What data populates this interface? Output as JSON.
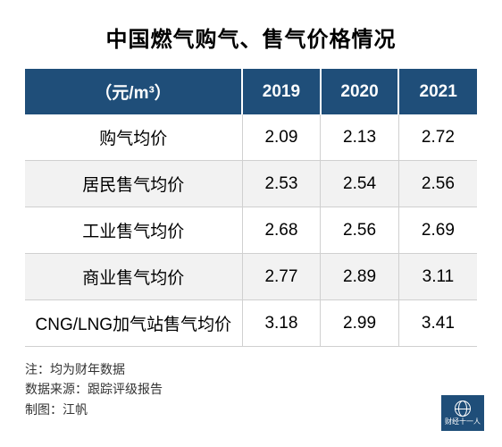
{
  "title": "中国燃气购气、售气价格情况",
  "table": {
    "header_bg": "#1f4e79",
    "header_fg": "#ffffff",
    "row_alt_bg": "#f2f2f2",
    "border_color": "#d0d0d0",
    "columns": [
      {
        "label": "（元/m³）",
        "key": "label"
      },
      {
        "label": "2019",
        "key": "y2019"
      },
      {
        "label": "2020",
        "key": "y2020"
      },
      {
        "label": "2021",
        "key": "y2021"
      }
    ],
    "rows": [
      {
        "label": "购气均价",
        "y2019": "2.09",
        "y2020": "2.13",
        "y2021": "2.72"
      },
      {
        "label": "居民售气均价",
        "y2019": "2.53",
        "y2020": "2.54",
        "y2021": "2.56"
      },
      {
        "label": "工业售气均价",
        "y2019": "2.68",
        "y2020": "2.56",
        "y2021": "2.69"
      },
      {
        "label": "商业售气均价",
        "y2019": "2.77",
        "y2020": "2.89",
        "y2021": "3.11"
      },
      {
        "label": "CNG/LNG加气站售气均价",
        "y2019": "3.18",
        "y2020": "2.99",
        "y2021": "3.41"
      }
    ]
  },
  "footer": {
    "note": "注：均为财年数据",
    "source": "数据来源：跟踪评级报告",
    "author": "制图：江帆"
  },
  "logo": {
    "text": "财经十一人"
  }
}
